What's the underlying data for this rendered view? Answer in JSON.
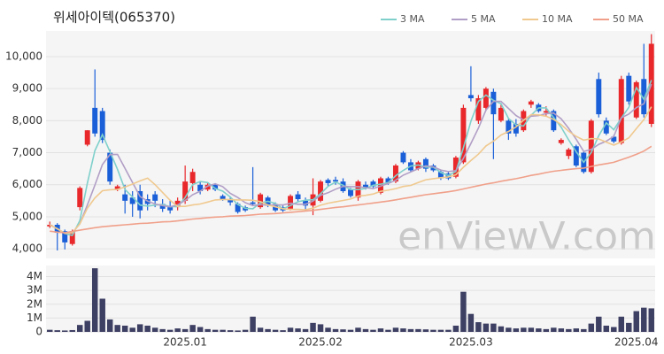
{
  "chart_data": [
    {
      "type": "candlestick",
      "title": "위세아이텍(065370)",
      "watermark": "enViewV.com",
      "up_color": "#e8282b",
      "down_color": "#1a5fd8",
      "open": [
        4700,
        4750,
        4550,
        4150,
        5300,
        7250,
        8400,
        8300,
        7000,
        5850,
        5700,
        5600,
        5800,
        5550,
        5700,
        5400,
        5300,
        5300,
        5500,
        6050,
        6000,
        5850,
        6000,
        5650,
        5550,
        5400,
        5300,
        5450,
        5300,
        5600,
        5400,
        5300,
        5250,
        5700,
        5500,
        5350,
        5500,
        6150,
        6150,
        6100,
        5850,
        5600,
        6000,
        6100,
        5750,
        6200,
        6100,
        7000,
        6700,
        6500,
        6800,
        6600,
        6400,
        6350,
        6250,
        6700,
        8800,
        8000,
        8400,
        8900,
        8000,
        8000,
        7900,
        7700,
        8500,
        8500,
        8250,
        8300,
        7300,
        6900,
        7200,
        7000,
        6400,
        9300,
        8000,
        7500,
        7300,
        9400,
        8100,
        9300,
        7900
      ],
      "high": [
        4850,
        4800,
        4600,
        4600,
        5950,
        7700,
        9600,
        8400,
        7100,
        6000,
        6000,
        5800,
        6000,
        5700,
        5800,
        5550,
        5500,
        5600,
        6600,
        6500,
        6100,
        6050,
        6050,
        5700,
        5600,
        5450,
        5350,
        6550,
        5750,
        5650,
        5450,
        5350,
        5700,
        5800,
        5600,
        6200,
        6150,
        6200,
        6250,
        6200,
        5900,
        6150,
        6100,
        6150,
        6250,
        6250,
        6650,
        7050,
        6800,
        6750,
        6850,
        6650,
        6450,
        6400,
        6900,
        8500,
        9700,
        8800,
        9050,
        9000,
        8500,
        8050,
        8050,
        8350,
        8650,
        8550,
        8450,
        8350,
        7450,
        7150,
        7250,
        7050,
        8050,
        9500,
        8100,
        7550,
        9400,
        9500,
        9250,
        10400,
        10700
      ],
      "low": [
        4650,
        3950,
        3980,
        4100,
        5200,
        7200,
        7500,
        7300,
        6000,
        5800,
        5100,
        5000,
        4950,
        5200,
        5300,
        5150,
        5100,
        5200,
        5400,
        5800,
        5700,
        5800,
        5800,
        5500,
        5350,
        5100,
        5150,
        5350,
        5250,
        5300,
        5150,
        5150,
        5200,
        5450,
        5200,
        5050,
        5450,
        5950,
        6000,
        5750,
        5600,
        5500,
        5850,
        5900,
        5700,
        6000,
        6050,
        6650,
        6400,
        6450,
        6400,
        6400,
        6150,
        6150,
        6200,
        6650,
        8600,
        7900,
        8300,
        6800,
        7950,
        7400,
        7500,
        7650,
        8400,
        8250,
        8150,
        7650,
        7250,
        6800,
        6550,
        6350,
        6350,
        8100,
        7550,
        7300,
        7250,
        8500,
        8050,
        8100,
        7800
      ],
      "close": [
        4750,
        4500,
        4200,
        4550,
        5900,
        7700,
        7600,
        7400,
        6100,
        5950,
        5500,
        5400,
        5200,
        5400,
        5500,
        5250,
        5200,
        5500,
        6100,
        6400,
        5800,
        6000,
        5850,
        5550,
        5450,
        5150,
        5200,
        5400,
        5700,
        5350,
        5200,
        5200,
        5650,
        5550,
        5350,
        5700,
        6100,
        6050,
        6100,
        5800,
        5650,
        6100,
        5900,
        5950,
        6200,
        6050,
        6600,
        6700,
        6450,
        6700,
        6500,
        6450,
        6200,
        6200,
        6850,
        8400,
        8700,
        8700,
        9000,
        8200,
        8400,
        7600,
        7600,
        8300,
        8600,
        8300,
        8300,
        7700,
        7400,
        7100,
        6600,
        6400,
        8000,
        8200,
        7600,
        7350,
        9300,
        8600,
        9200,
        8200,
        10400
      ],
      "series": [
        {
          "name": "3 MA",
          "color": "#7fd0cb",
          "values": [
            4750,
            4625,
            4483,
            4417,
            4883,
            6050,
            7067,
            7567,
            7033,
            6483,
            5850,
            5617,
            5367,
            5333,
            5367,
            5383,
            5317,
            5317,
            5600,
            6000,
            6100,
            6067,
            5883,
            5800,
            5617,
            5383,
            5267,
            5250,
            5433,
            5483,
            5417,
            5250,
            5350,
            5467,
            5517,
            5533,
            5717,
            5950,
            6083,
            5983,
            5850,
            5850,
            5883,
            5983,
            6017,
            6067,
            6283,
            6450,
            6583,
            6617,
            6550,
            6550,
            6383,
            6283,
            6417,
            7150,
            7983,
            8600,
            8800,
            8633,
            8533,
            8067,
            7867,
            7833,
            8167,
            8400,
            8400,
            8100,
            7800,
            7400,
            7033,
            6700,
            7000,
            7533,
            7933,
            7717,
            8083,
            8417,
            9033,
            8667,
            9267
          ]
        },
        {
          "name": "5 MA",
          "color": "#b19ec6",
          "values": [
            4750,
            4625,
            4483,
            4500,
            4780,
            5370,
            5990,
            6630,
            6940,
            6950,
            6510,
            6070,
            5630,
            5490,
            5400,
            5350,
            5310,
            5370,
            5510,
            5690,
            5800,
            5960,
            6030,
            5940,
            5730,
            5600,
            5440,
            5350,
            5380,
            5360,
            5370,
            5370,
            5420,
            5390,
            5390,
            5490,
            5670,
            5750,
            5860,
            5950,
            5940,
            5940,
            5910,
            5880,
            5960,
            6040,
            6140,
            6300,
            6400,
            6500,
            6590,
            6560,
            6460,
            6410,
            6440,
            6820,
            7290,
            7770,
            8330,
            8600,
            8600,
            8380,
            8160,
            8020,
            8140,
            8160,
            8220,
            8240,
            8060,
            7760,
            7420,
            7040,
            7100,
            7260,
            7360,
            7510,
            8090,
            8210,
            8410,
            8530,
            9140
          ]
        },
        {
          "name": "10 MA",
          "color": "#f0c98f",
          "values": [
            4750,
            4625,
            4483,
            4500,
            4780,
            5267,
            5586,
            5813,
            5844,
            5855,
            5930,
            6020,
            6120,
            6205,
            6000,
            5755,
            5515,
            5325,
            5325,
            5370,
            5400,
            5460,
            5525,
            5540,
            5535,
            5525,
            5525,
            5515,
            5475,
            5370,
            5310,
            5250,
            5230,
            5230,
            5220,
            5270,
            5360,
            5425,
            5465,
            5510,
            5555,
            5645,
            5670,
            5710,
            5795,
            5830,
            5880,
            5945,
            5980,
            6070,
            6155,
            6190,
            6220,
            6245,
            6310,
            6545,
            6755,
            6955,
            7210,
            7360,
            7550,
            7665,
            7805,
            8015,
            8190,
            8180,
            8140,
            8040,
            7880,
            7670,
            7510,
            7390,
            7440,
            7430,
            7330,
            7235,
            7335,
            7465,
            7755,
            8035,
            8435
          ]
        },
        {
          "name": "50 MA",
          "color": "#f0a08a",
          "values": [
            4550,
            4520,
            4500,
            4540,
            4580,
            4620,
            4660,
            4690,
            4710,
            4730,
            4750,
            4770,
            4790,
            4800,
            4820,
            4840,
            4850,
            4870,
            4900,
            4930,
            4950,
            4970,
            4990,
            5000,
            5020,
            5030,
            5040,
            5060,
            5080,
            5090,
            5100,
            5120,
            5140,
            5160,
            5180,
            5200,
            5230,
            5260,
            5290,
            5310,
            5340,
            5370,
            5400,
            5430,
            5460,
            5490,
            5530,
            5570,
            5610,
            5650,
            5690,
            5720,
            5750,
            5780,
            5820,
            5870,
            5920,
            5970,
            6020,
            6060,
            6110,
            6150,
            6190,
            6240,
            6290,
            6330,
            6380,
            6420,
            6450,
            6480,
            6500,
            6520,
            6570,
            6620,
            6660,
            6700,
            6780,
            6860,
            6950,
            7050,
            7200
          ]
        }
      ],
      "ylim": [
        3700,
        10800
      ],
      "yticks": [
        {
          "value": 4000,
          "label": "4,000"
        },
        {
          "value": 5000,
          "label": "5,000"
        },
        {
          "value": 6000,
          "label": "6,000"
        },
        {
          "value": 7000,
          "label": "7,000"
        },
        {
          "value": 8000,
          "label": "8,000"
        },
        {
          "value": 9000,
          "label": "9,000"
        },
        {
          "value": 10000,
          "label": "10,000"
        }
      ],
      "grid": true
    },
    {
      "type": "bar",
      "color": "#3d3f63",
      "categories": [
        null,
        null,
        null,
        null,
        null,
        null,
        null,
        null,
        null,
        null,
        null,
        null,
        null,
        null,
        null,
        null,
        null,
        null,
        "2025.01",
        null,
        null,
        null,
        null,
        null,
        null,
        null,
        null,
        null,
        null,
        null,
        null,
        null,
        null,
        null,
        null,
        null,
        "2025.02",
        null,
        null,
        null,
        null,
        null,
        null,
        null,
        null,
        null,
        null,
        null,
        null,
        null,
        null,
        null,
        null,
        null,
        null,
        null,
        "2025.03",
        null,
        null,
        null,
        null,
        null,
        null,
        null,
        null,
        null,
        null,
        null,
        null,
        null,
        null,
        null,
        null,
        null,
        null,
        null,
        null,
        null,
        "2025.04",
        null,
        null
      ],
      "values": [
        150000,
        120000,
        100000,
        130000,
        500000,
        800000,
        4600000,
        2400000,
        900000,
        500000,
        450000,
        300000,
        550000,
        450000,
        300000,
        200000,
        150000,
        250000,
        200000,
        500000,
        350000,
        200000,
        150000,
        150000,
        120000,
        100000,
        150000,
        1100000,
        300000,
        200000,
        150000,
        120000,
        300000,
        250000,
        200000,
        650000,
        550000,
        300000,
        200000,
        180000,
        150000,
        300000,
        200000,
        150000,
        250000,
        150000,
        300000,
        250000,
        200000,
        200000,
        180000,
        150000,
        150000,
        150000,
        450000,
        2900000,
        1300000,
        700000,
        600000,
        600000,
        400000,
        300000,
        250000,
        300000,
        300000,
        250000,
        200000,
        300000,
        250000,
        200000,
        250000,
        200000,
        600000,
        1100000,
        450000,
        350000,
        1100000,
        650000,
        1500000,
        1750000,
        1700000
      ],
      "ylim": [
        0,
        4800000
      ],
      "yticks": [
        0,
        {
          "value": 1000000,
          "label": "1M"
        },
        {
          "value": 2000000,
          "label": "2M"
        },
        {
          "value": 3000000,
          "label": "3M"
        },
        {
          "value": 4000000,
          "label": "4M"
        }
      ],
      "grid": true
    }
  ]
}
